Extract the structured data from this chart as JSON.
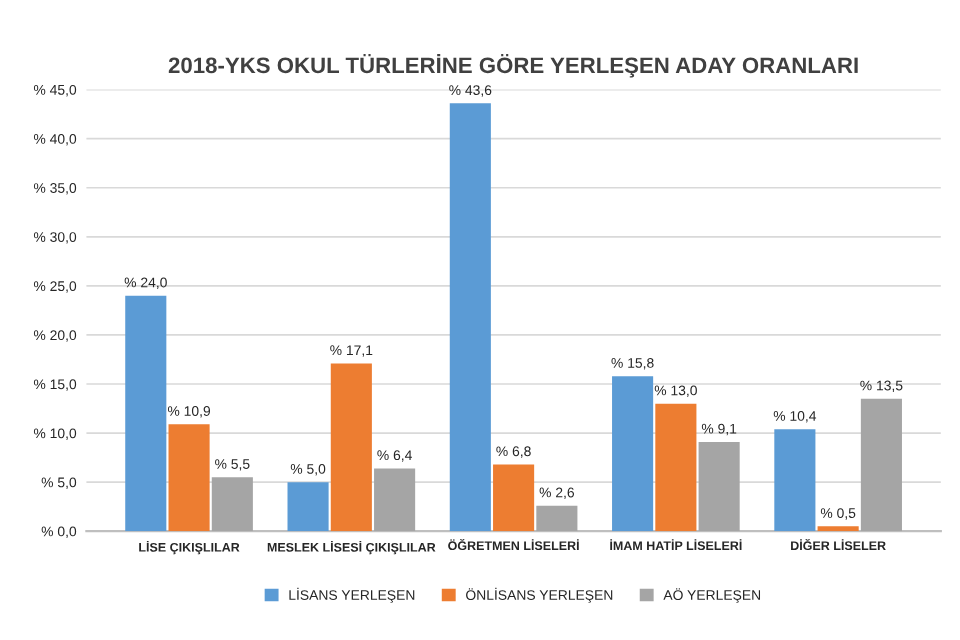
{
  "chart_data": {
    "type": "bar",
    "title": "2018-YKS OKUL TÜRLERİNE GÖRE YERLEŞEN ADAY ORANLARI",
    "categories": [
      "LİSE ÇIKIŞLILAR",
      "MESLEK LİSESİ ÇIKIŞLILAR",
      "ÖĞRETMEN LİSELERİ",
      "İMAM HATİP LİSELERİ",
      "DİĞER LİSELER"
    ],
    "series": [
      {
        "name": "LİSANS YERLEŞEN",
        "color": "#5b9bd5",
        "values": [
          24.0,
          5.0,
          43.6,
          15.8,
          10.4
        ],
        "value_labels": [
          "% 24,0",
          "% 5,0",
          "% 43,6",
          "% 15,8",
          "% 10,4"
        ]
      },
      {
        "name": "ÖNLİSANS YERLEŞEN",
        "color": "#ed7d31",
        "values": [
          10.9,
          17.1,
          6.8,
          13.0,
          0.5
        ],
        "value_labels": [
          "% 10,9",
          "% 17,1",
          "% 6,8",
          "% 13,0",
          "% 0,5"
        ]
      },
      {
        "name": "AÖ YERLEŞEN",
        "color": "#a5a5a5",
        "values": [
          5.5,
          6.4,
          2.6,
          9.1,
          13.5
        ],
        "value_labels": [
          "% 5,5",
          "% 6,4",
          "% 2,6",
          "% 9,1",
          "% 13,5"
        ]
      }
    ],
    "ylim": [
      0,
      45
    ],
    "yticks": [
      {
        "value": 0,
        "label": "% 0,0"
      },
      {
        "value": 5,
        "label": "% 5,0"
      },
      {
        "value": 10,
        "label": "% 10,0"
      },
      {
        "value": 15,
        "label": "% 15,0"
      },
      {
        "value": 20,
        "label": "% 20,0"
      },
      {
        "value": 25,
        "label": "% 25,0"
      },
      {
        "value": 30,
        "label": "% 30,0"
      },
      {
        "value": 35,
        "label": "% 35,0"
      },
      {
        "value": 40,
        "label": "% 40,0"
      },
      {
        "value": 45,
        "label": "% 45,0"
      }
    ],
    "grid": "y",
    "legend": "bottom"
  }
}
